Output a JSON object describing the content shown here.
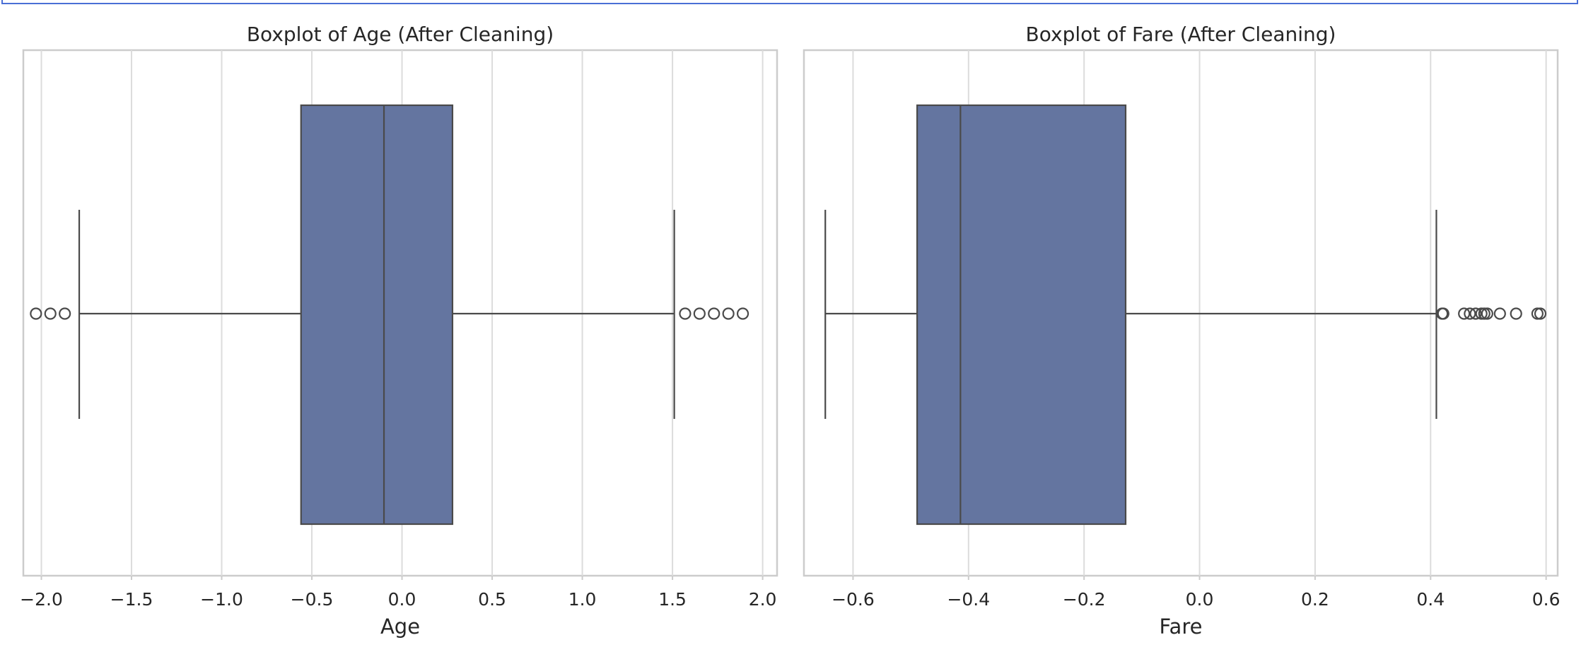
{
  "chart_data": [
    {
      "type": "boxplot",
      "title": "Boxplot of Age (After Cleaning)",
      "xlabel": "Age",
      "ylabel": "",
      "xlim": [
        -2.1,
        2.08
      ],
      "xticks": [
        -2.0,
        -1.5,
        -1.0,
        -0.5,
        0.0,
        0.5,
        1.0,
        1.5,
        2.0
      ],
      "xtick_labels": [
        "−2.0",
        "−1.5",
        "−1.0",
        "−0.5",
        "0.0",
        "0.5",
        "1.0",
        "1.5",
        "2.0"
      ],
      "grid": true,
      "box_color": "#6475a0",
      "box": {
        "whisker_low": -1.79,
        "q1": -0.56,
        "median": -0.1,
        "q3": 0.28,
        "whisker_high": 1.51
      },
      "outliers": [
        -2.03,
        -1.95,
        -1.87,
        1.57,
        1.65,
        1.73,
        1.81,
        1.89
      ]
    },
    {
      "type": "boxplot",
      "title": "Boxplot of Fare (After Cleaning)",
      "xlabel": "Fare",
      "ylabel": "",
      "xlim": [
        -0.685,
        0.62
      ],
      "xticks": [
        -0.6,
        -0.4,
        -0.2,
        0.0,
        0.2,
        0.4,
        0.6
      ],
      "xtick_labels": [
        "−0.6",
        "−0.4",
        "−0.2",
        "0.0",
        "0.2",
        "0.4",
        "0.6"
      ],
      "grid": true,
      "box_color": "#6475a0",
      "box": {
        "whisker_low": -0.648,
        "q1": -0.489,
        "median": -0.414,
        "q3": -0.128,
        "whisker_high": 0.41
      },
      "outliers": [
        0.42,
        0.422,
        0.458,
        0.468,
        0.478,
        0.488,
        0.493,
        0.498,
        0.52,
        0.548,
        0.585,
        0.59
      ]
    }
  ]
}
